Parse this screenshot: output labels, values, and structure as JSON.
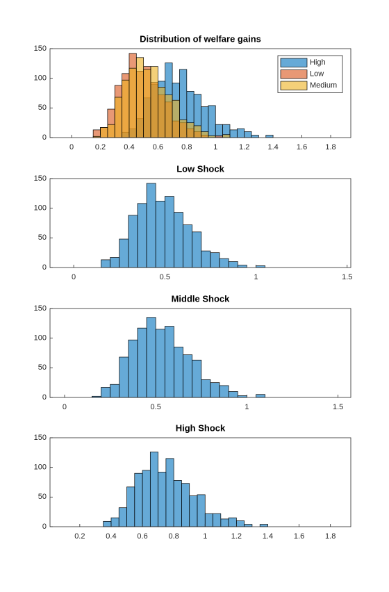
{
  "chart_data": [
    {
      "type": "histogram",
      "title": "Distribution of welfare gains",
      "bins": [
        0.15,
        0.2,
        0.25,
        0.3,
        0.35,
        0.4,
        0.45,
        0.5,
        0.55,
        0.6,
        0.65,
        0.7,
        0.75,
        0.8,
        0.85,
        0.9,
        0.95,
        1.0,
        1.05,
        1.1,
        1.15,
        1.2,
        1.25,
        1.3,
        1.35,
        1.4
      ],
      "series": [
        {
          "name": "High",
          "color": "#0072bd",
          "values": [
            0,
            0,
            0,
            0,
            9,
            15,
            32,
            67,
            90,
            95,
            126,
            92,
            115,
            78,
            73,
            52,
            54,
            22,
            22,
            13,
            15,
            10,
            4,
            0,
            4
          ]
        },
        {
          "name": "Low",
          "color": "#d95319",
          "values": [
            13,
            17,
            48,
            88,
            108,
            142,
            112,
            120,
            93,
            72,
            60,
            28,
            25,
            15,
            10,
            4,
            0,
            3,
            0,
            0,
            0,
            0,
            0,
            0,
            0
          ]
        },
        {
          "name": "Medium",
          "color": "#edb120",
          "values": [
            2,
            17,
            22,
            68,
            97,
            117,
            135,
            115,
            120,
            85,
            72,
            63,
            30,
            25,
            20,
            10,
            3,
            0,
            5,
            0,
            0,
            0,
            0,
            0,
            0
          ]
        }
      ],
      "xlim": [
        -0.15,
        1.94
      ],
      "xticks": [
        0,
        0.2,
        0.4,
        0.6,
        0.8,
        1,
        1.2,
        1.4,
        1.6,
        1.8
      ],
      "ylim": [
        0,
        150
      ],
      "yticks": [
        0,
        50,
        100,
        150
      ],
      "legend": "northeast"
    },
    {
      "type": "histogram",
      "title": "Low Shock",
      "bins": [
        0.15,
        0.2,
        0.25,
        0.3,
        0.35,
        0.4,
        0.45,
        0.5,
        0.55,
        0.6,
        0.65,
        0.7,
        0.75,
        0.8,
        0.85,
        0.9,
        0.95,
        1.0,
        1.05
      ],
      "values": [
        13,
        17,
        48,
        88,
        108,
        142,
        112,
        120,
        93,
        72,
        60,
        28,
        25,
        15,
        10,
        4,
        0,
        3
      ],
      "color": "#0072bd",
      "xlim": [
        -0.13,
        1.52
      ],
      "xticks": [
        0,
        0.5,
        1,
        1.5
      ],
      "ylim": [
        0,
        150
      ],
      "yticks": [
        0,
        50,
        100,
        150
      ]
    },
    {
      "type": "histogram",
      "title": "Middle Shock",
      "bins": [
        0.15,
        0.2,
        0.25,
        0.3,
        0.35,
        0.4,
        0.45,
        0.5,
        0.55,
        0.6,
        0.65,
        0.7,
        0.75,
        0.8,
        0.85,
        0.9,
        0.95,
        1.0,
        1.05,
        1.1
      ],
      "values": [
        2,
        17,
        22,
        68,
        97,
        117,
        135,
        115,
        120,
        85,
        72,
        63,
        30,
        25,
        20,
        10,
        3,
        0,
        5
      ],
      "color": "#0072bd",
      "xlim": [
        -0.08,
        1.57
      ],
      "xticks": [
        0,
        0.5,
        1,
        1.5
      ],
      "ylim": [
        0,
        150
      ],
      "yticks": [
        0,
        50,
        100,
        150
      ]
    },
    {
      "type": "histogram",
      "title": "High Shock",
      "bins": [
        0.35,
        0.4,
        0.45,
        0.5,
        0.55,
        0.6,
        0.65,
        0.7,
        0.75,
        0.8,
        0.85,
        0.9,
        0.95,
        1.0,
        1.05,
        1.1,
        1.15,
        1.2,
        1.25,
        1.3,
        1.35,
        1.4
      ],
      "values": [
        9,
        15,
        32,
        67,
        90,
        95,
        126,
        92,
        115,
        78,
        73,
        52,
        54,
        22,
        22,
        13,
        15,
        10,
        4,
        0,
        4
      ],
      "color": "#0072bd",
      "xlim": [
        0.01,
        1.93
      ],
      "xticks": [
        0.2,
        0.4,
        0.6,
        0.8,
        1,
        1.2,
        1.4,
        1.6,
        1.8
      ],
      "ylim": [
        0,
        150
      ],
      "yticks": [
        0,
        50,
        100,
        150
      ]
    }
  ]
}
